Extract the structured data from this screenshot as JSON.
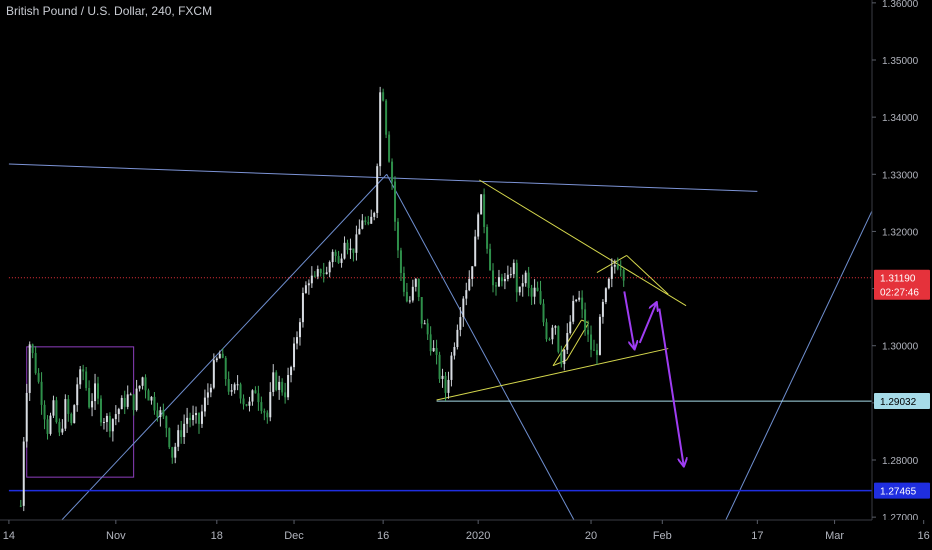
{
  "header": {
    "title": "British Pound / U.S. Dollar, 240, FXCM"
  },
  "chart_data": {
    "type": "candlestick",
    "instrument": "British Pound / U.S. Dollar",
    "timeframe": "240",
    "source": "FXCM",
    "background": "#000000",
    "ylim": [
      1.2695,
      1.3605
    ],
    "y_ticks": [
      "1.36000",
      "1.35000",
      "1.34000",
      "1.33000",
      "1.32000",
      "1.31000",
      "1.30000",
      "1.29000",
      "1.28000",
      "1.27000"
    ],
    "x_ticks": [
      {
        "label": "14",
        "day": -18
      },
      {
        "label": "Nov",
        "day": 0
      },
      {
        "label": "18",
        "day": 17
      },
      {
        "label": "Dec",
        "day": 30
      },
      {
        "label": "16",
        "day": 45
      },
      {
        "label": "2020",
        "day": 61
      },
      {
        "label": "20",
        "day": 80
      },
      {
        "label": "Feb",
        "day": 92
      },
      {
        "label": "17",
        "day": 108
      },
      {
        "label": "Mar",
        "day": 121
      },
      {
        "label": "16",
        "day": 136
      }
    ],
    "price_tags": [
      {
        "value": "1.31190",
        "bg": "#e5323b",
        "fg": "#ffffff",
        "sub": "02:27:46"
      },
      {
        "value": "1.29032",
        "bg": "#a6dbe8",
        "fg": "#000000"
      },
      {
        "value": "1.27465",
        "bg": "#1f2ee0",
        "fg": "#ffffff"
      }
    ],
    "price_path": [
      [
        -16,
        1.272
      ],
      [
        -15.5,
        1.284
      ],
      [
        -15,
        1.293
      ],
      [
        -14.5,
        1.3005
      ],
      [
        -13.5,
        1.296
      ],
      [
        -12.5,
        1.291
      ],
      [
        -11.5,
        1.2855
      ],
      [
        -10.5,
        1.289
      ],
      [
        -9.5,
        1.284
      ],
      [
        -8.5,
        1.2895
      ],
      [
        -7.5,
        1.286
      ],
      [
        -6.5,
        1.2935
      ],
      [
        -5.5,
        1.2955
      ],
      [
        -4.5,
        1.29
      ],
      [
        -3.5,
        1.292
      ],
      [
        -2.5,
        1.288
      ],
      [
        -1,
        1.2865
      ],
      [
        0.5,
        1.289
      ],
      [
        2,
        1.291
      ],
      [
        3,
        1.29
      ],
      [
        4.5,
        1.2945
      ],
      [
        5.5,
        1.2915
      ],
      [
        7,
        1.289
      ],
      [
        8.5,
        1.286
      ],
      [
        9.5,
        1.281
      ],
      [
        10.5,
        1.284
      ],
      [
        12,
        1.2875
      ],
      [
        14,
        1.2865
      ],
      [
        15.5,
        1.292
      ],
      [
        16.5,
        1.296
      ],
      [
        17.5,
        1.2985
      ],
      [
        18.5,
        1.2945
      ],
      [
        19.5,
        1.291
      ],
      [
        20.5,
        1.2935
      ],
      [
        21.5,
        1.2905
      ],
      [
        22.5,
        1.2895
      ],
      [
        23.5,
        1.2925
      ],
      [
        24.5,
        1.29
      ],
      [
        25.5,
        1.2875
      ],
      [
        26.5,
        1.294
      ],
      [
        27.5,
        1.293
      ],
      [
        28.5,
        1.292
      ],
      [
        29.5,
        1.296
      ],
      [
        30.5,
        1.302
      ],
      [
        31.5,
        1.3085
      ],
      [
        32.5,
        1.312
      ],
      [
        33.5,
        1.311
      ],
      [
        34.5,
        1.3135
      ],
      [
        35.5,
        1.3125
      ],
      [
        36.5,
        1.317
      ],
      [
        37.5,
        1.314
      ],
      [
        38.5,
        1.3195
      ],
      [
        39.5,
        1.3165
      ],
      [
        40.5,
        1.318
      ],
      [
        41.5,
        1.3225
      ],
      [
        42.5,
        1.32
      ],
      [
        43.5,
        1.324
      ],
      [
        44.3,
        1.338
      ],
      [
        44.7,
        1.3505
      ],
      [
        45.1,
        1.342
      ],
      [
        45.7,
        1.336
      ],
      [
        46.5,
        1.329
      ],
      [
        47.3,
        1.3175
      ],
      [
        48.2,
        1.3115
      ],
      [
        49.2,
        1.307
      ],
      [
        50.5,
        1.311
      ],
      [
        51.5,
        1.3045
      ],
      [
        52.5,
        1.302
      ],
      [
        53.5,
        1.299
      ],
      [
        54.5,
        1.295
      ],
      [
        55.5,
        1.292
      ],
      [
        56.5,
        1.298
      ],
      [
        57.5,
        1.304
      ],
      [
        58.5,
        1.309
      ],
      [
        59.5,
        1.312
      ],
      [
        60.5,
        1.318
      ],
      [
        61.2,
        1.327
      ],
      [
        61.8,
        1.323
      ],
      [
        62.8,
        1.316
      ],
      [
        63.8,
        1.308
      ],
      [
        64.8,
        1.313
      ],
      [
        65.8,
        1.31
      ],
      [
        66.8,
        1.315
      ],
      [
        67.8,
        1.308
      ],
      [
        68.8,
        1.313
      ],
      [
        69.8,
        1.308
      ],
      [
        70.8,
        1.31
      ],
      [
        71.8,
        1.305
      ],
      [
        72.8,
        1.301
      ],
      [
        73.8,
        1.3055
      ],
      [
        74.8,
        1.2975
      ],
      [
        75.8,
        1.3
      ],
      [
        76.8,
        1.306
      ],
      [
        77.8,
        1.309
      ],
      [
        78.8,
        1.304
      ],
      [
        79.8,
        1.3
      ],
      [
        80.8,
        1.298
      ],
      [
        81.8,
        1.306
      ],
      [
        82.8,
        1.31
      ],
      [
        83.8,
        1.314
      ],
      [
        84.8,
        1.315
      ],
      [
        85.8,
        1.312
      ]
    ],
    "annotations": {
      "rectangle": {
        "x0": -15,
        "x1": 3,
        "y0": 1.277,
        "y1": 1.2998,
        "color": "#8e3fbf"
      },
      "lines": [
        {
          "x0": -18,
          "y0": 1.3318,
          "x1": 108,
          "y1": 1.327,
          "color": "#7d94d6"
        },
        {
          "x0": -10,
          "y0": 1.2685,
          "x1": 45.6,
          "y1": 1.33,
          "color": "#6f8fd0"
        },
        {
          "x0": 45.6,
          "y0": 1.33,
          "x1": 80,
          "y1": 1.264,
          "color": "#6f8fd0"
        },
        {
          "x0": 102,
          "y0": 1.268,
          "x1": 135,
          "y1": 1.3405,
          "color": "#6f8fd0"
        },
        {
          "x0": 61.2,
          "y0": 1.329,
          "x1": 96,
          "y1": 1.307,
          "color": "#d6d84d"
        },
        {
          "x0": 54,
          "y0": 1.2905,
          "x1": 93,
          "y1": 1.2995,
          "color": "#d6d84d"
        },
        {
          "x0": 81,
          "y0": 1.3128,
          "x1": 86,
          "y1": 1.3158,
          "color": "#d6d84d"
        },
        {
          "x0": 86,
          "y0": 1.3158,
          "x1": 93,
          "y1": 1.309,
          "color": "#d6d84d"
        },
        {
          "x0": 73.6,
          "y0": 1.2965,
          "x1": 78.4,
          "y1": 1.3045,
          "color": "#d6d84d"
        },
        {
          "x0": 75.9,
          "y0": 1.2975,
          "x1": 79.6,
          "y1": 1.304,
          "color": "#d6d84d"
        },
        {
          "x0": 78.4,
          "y0": 1.3045,
          "x1": 79.6,
          "y1": 1.304,
          "color": "#d6d84d"
        },
        {
          "x0": 73.6,
          "y0": 1.2965,
          "x1": 75.9,
          "y1": 1.2975,
          "color": "#d6d84d"
        },
        {
          "x0": 54,
          "y0": 1.2903,
          "x1": 138,
          "y1": 1.2903,
          "color": "#a6dbe8"
        },
        {
          "x0": -18,
          "y0": 1.3119,
          "x1": 138,
          "y1": 1.3119,
          "color": "#e5323b",
          "dotted": true
        },
        {
          "x0": -18,
          "y0": 1.27465,
          "x1": 138,
          "y1": 1.27465,
          "color": "#1f2ee0"
        }
      ],
      "arrows": [
        {
          "x0": 85.6,
          "y0": 1.3095,
          "x1": 87.3,
          "y1": 1.2995,
          "color": "#9f3df2"
        },
        {
          "x0": 88.2,
          "y0": 1.3005,
          "x1": 91.0,
          "y1": 1.3075,
          "color": "#9f3df2"
        },
        {
          "x0": 91.5,
          "y0": 1.3065,
          "x1": 95.6,
          "y1": 1.279,
          "color": "#9f3df2"
        }
      ]
    }
  }
}
